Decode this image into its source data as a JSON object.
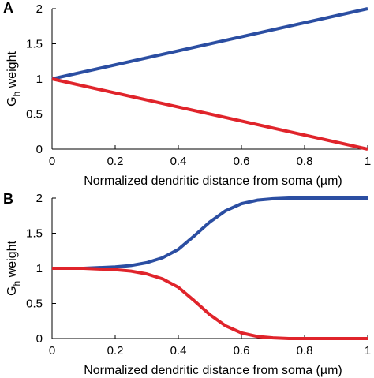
{
  "chart_data": [
    {
      "panel": "A",
      "type": "line",
      "title": "",
      "xlabel": "Normalized dendritic distance from soma (µm)",
      "ylabel": "G",
      "ylabel_subscript": "h",
      "ylabel_suffix": " weight",
      "xlim": [
        0,
        1
      ],
      "ylim": [
        0,
        2
      ],
      "xticks": [
        0,
        0.2,
        0.4,
        0.6,
        0.8,
        1
      ],
      "yticks": [
        0,
        0.5,
        1,
        1.5,
        2
      ],
      "xtick_labels": [
        "0",
        "0.2",
        "0.4",
        "0.6",
        "0.8",
        "1"
      ],
      "ytick_labels": [
        "0",
        "0.5",
        "1",
        "1.5",
        "2"
      ],
      "grid": false,
      "series": [
        {
          "color": "#2b4ea2",
          "x": [
            0,
            1
          ],
          "y": [
            1,
            2
          ]
        },
        {
          "color": "#e0242b",
          "x": [
            0,
            1
          ],
          "y": [
            1,
            0
          ]
        }
      ]
    },
    {
      "panel": "B",
      "type": "line",
      "title": "",
      "xlabel": "Normalized dendritic distance from soma (µm)",
      "ylabel": "G",
      "ylabel_subscript": "h",
      "ylabel_suffix": " weight",
      "xlim": [
        0,
        1
      ],
      "ylim": [
        0,
        2
      ],
      "xticks": [
        0,
        0.2,
        0.4,
        0.6,
        0.8,
        1
      ],
      "yticks": [
        0,
        0.5,
        1,
        1.5,
        2
      ],
      "xtick_labels": [
        "0",
        "0.2",
        "0.4",
        "0.6",
        "0.8",
        "1"
      ],
      "ytick_labels": [
        "0",
        "0.5",
        "1",
        "1.5",
        "2"
      ],
      "grid": false,
      "series": [
        {
          "color": "#2b4ea2",
          "x": [
            0,
            0.1,
            0.2,
            0.25,
            0.3,
            0.35,
            0.4,
            0.45,
            0.5,
            0.55,
            0.6,
            0.65,
            0.7,
            0.75,
            0.8,
            0.9,
            1
          ],
          "y": [
            1,
            1,
            1.02,
            1.04,
            1.08,
            1.15,
            1.27,
            1.46,
            1.66,
            1.82,
            1.92,
            1.97,
            1.99,
            2,
            2,
            2,
            2
          ]
        },
        {
          "color": "#e0242b",
          "x": [
            0,
            0.1,
            0.2,
            0.25,
            0.3,
            0.35,
            0.4,
            0.45,
            0.5,
            0.55,
            0.6,
            0.65,
            0.7,
            0.75,
            0.8,
            0.9,
            1
          ],
          "y": [
            1,
            1,
            0.98,
            0.96,
            0.92,
            0.85,
            0.73,
            0.54,
            0.34,
            0.18,
            0.08,
            0.03,
            0.01,
            0,
            0,
            0,
            0
          ]
        }
      ]
    }
  ]
}
